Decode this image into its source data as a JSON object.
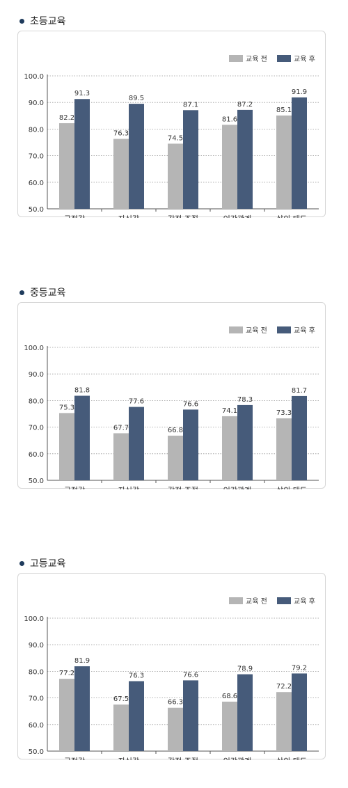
{
  "colors": {
    "before": "#b5b5b5",
    "after": "#465b7a",
    "title_dot": "#1f3b5c",
    "grid": "#999999"
  },
  "chart_data": [
    {
      "type": "bar",
      "title": "초등교육",
      "categories": [
        "긍정감",
        "자신감",
        "감정 조절",
        "인간관계",
        "삶의 태도"
      ],
      "series": [
        {
          "name": "교육 전",
          "values": [
            82.2,
            76.3,
            74.5,
            81.6,
            85.1
          ]
        },
        {
          "name": "교육 후",
          "values": [
            91.3,
            89.5,
            87.1,
            87.2,
            91.9
          ]
        }
      ],
      "yticks": [
        "50.0",
        "60.0",
        "70.0",
        "80.0",
        "90.0",
        "100.0"
      ],
      "ylim": [
        50,
        100
      ],
      "grid": true,
      "legend": "top-right"
    },
    {
      "type": "bar",
      "title": "중등교육",
      "categories": [
        "긍정감",
        "자신감",
        "감정 조절",
        "인간관계",
        "삶의 태도"
      ],
      "series": [
        {
          "name": "교육 전",
          "values": [
            75.3,
            67.7,
            66.8,
            74.1,
            73.3
          ]
        },
        {
          "name": "교육 후",
          "values": [
            81.8,
            77.6,
            76.6,
            78.3,
            81.7
          ]
        }
      ],
      "yticks": [
        "50.0",
        "60.0",
        "70.0",
        "80.0",
        "90.0",
        "100.0"
      ],
      "ylim": [
        50,
        100
      ],
      "grid": true,
      "legend": "top-right"
    },
    {
      "type": "bar",
      "title": "고등교육",
      "categories": [
        "긍정감",
        "자신감",
        "감정 조절",
        "인간관계",
        "삶의 태도"
      ],
      "series": [
        {
          "name": "교육 전",
          "values": [
            77.2,
            67.5,
            66.3,
            68.6,
            72.2
          ]
        },
        {
          "name": "교육 후",
          "values": [
            81.9,
            76.3,
            76.6,
            78.9,
            79.2
          ]
        }
      ],
      "yticks": [
        "50.0",
        "60.0",
        "70.0",
        "80.0",
        "90.0",
        "100.0"
      ],
      "ylim": [
        50,
        100
      ],
      "grid": true,
      "legend": "top-right"
    }
  ]
}
